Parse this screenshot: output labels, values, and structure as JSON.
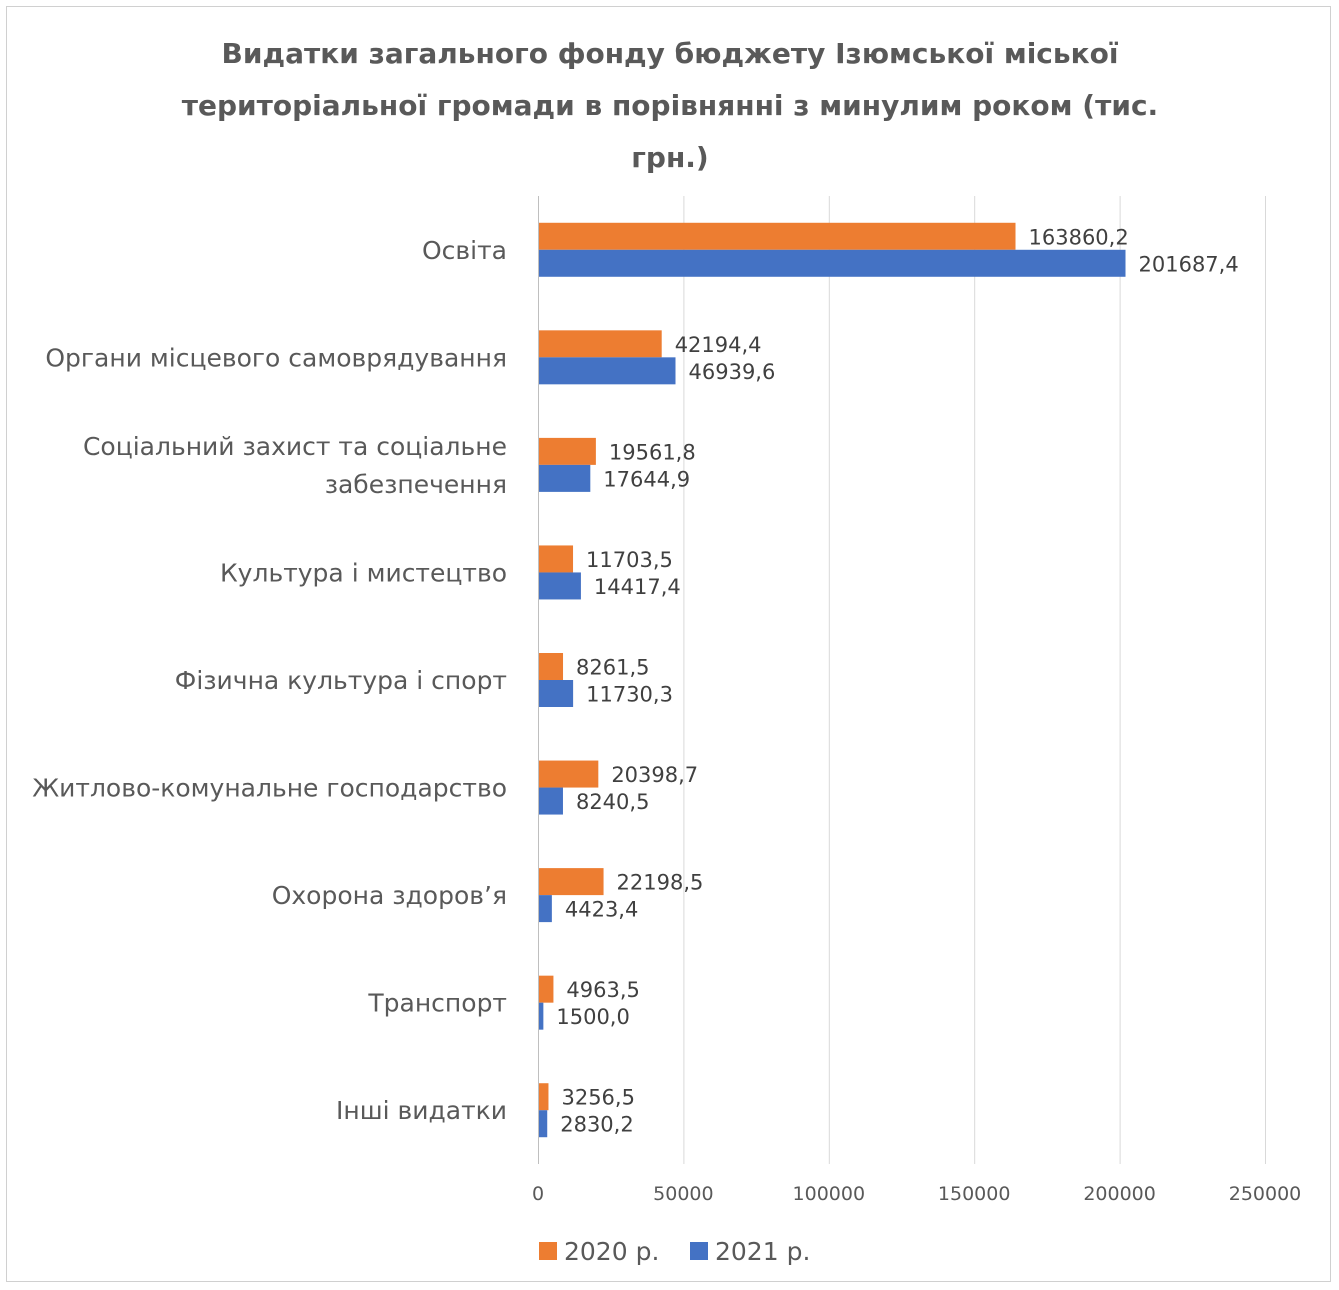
{
  "chart_data": {
    "type": "bar",
    "orientation": "horizontal",
    "title": "Видатки загального фонду бюджету Ізюмської міської територіальної громади в порівнянні з минулим роком (тис. грн.)",
    "title_lines": [
      "Видатки загального  фонду бюджету Ізюмської міської",
      "територіальної громади в порівнянні з минулим роком (тис.",
      "грн.)"
    ],
    "categories": [
      [
        "Освіта"
      ],
      [
        "Органи місцевого самоврядування"
      ],
      [
        "Соціальний захист та соціальне",
        "забезпечення"
      ],
      [
        "Культура і мистецтво"
      ],
      [
        "Фізична культура і спорт"
      ],
      [
        "Житлово-комунальне господарство"
      ],
      [
        "Охорона здоров’я"
      ],
      [
        "Транспорт"
      ],
      [
        "Інші видатки"
      ]
    ],
    "series": [
      {
        "name": "2020 р.",
        "color": "#ED7D31",
        "values": [
          163860.2,
          42194.4,
          19561.8,
          11703.5,
          8261.5,
          20398.7,
          22198.5,
          4963.5,
          3256.5
        ],
        "labels": [
          "163860,2",
          "42194,4",
          "19561,8",
          "11703,5",
          "8261,5",
          "20398,7",
          "22198,5",
          "4963,5",
          "3256,5"
        ]
      },
      {
        "name": "2021 р.",
        "color": "#4472C4",
        "values": [
          201687.4,
          46939.6,
          17644.9,
          14417.4,
          11730.3,
          8240.5,
          4423.4,
          1500.0,
          2830.2
        ],
        "labels": [
          "201687,4",
          "46939,6",
          "17644,9",
          "14417,4",
          "11730,3",
          "8240,5",
          "4423,4",
          "1500,0",
          "2830,2"
        ]
      }
    ],
    "xlim": [
      0,
      250000
    ],
    "xticks": [
      0,
      50000,
      100000,
      150000,
      200000,
      250000
    ],
    "xtick_labels": [
      "0",
      "50000",
      "100000",
      "150000",
      "200000",
      "250000"
    ],
    "grid": true,
    "legend_position": "bottom"
  }
}
